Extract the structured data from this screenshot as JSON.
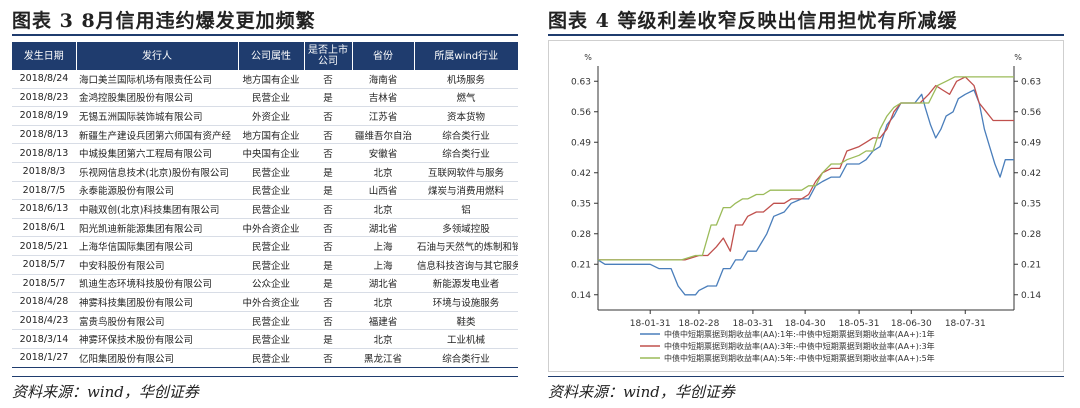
{
  "left": {
    "title": "图表 3   8月信用违约爆发更加频繁",
    "source": "资料来源：wind，华创证券",
    "columns": [
      "发生日期",
      "发行人",
      "公司属性",
      "是否上市公司",
      "省份",
      "所属wind行业"
    ],
    "rows": [
      [
        "2018/8/24",
        "海口美兰国际机场有限责任公司",
        "地方国有企业",
        "否",
        "海南省",
        "机场服务"
      ],
      [
        "2018/8/23",
        "金鸿控股集团股份有限公司",
        "民营企业",
        "是",
        "吉林省",
        "燃气"
      ],
      [
        "2018/8/19",
        "无锡五洲国际装饰城有限公司",
        "外资企业",
        "否",
        "江苏省",
        "资本货物"
      ],
      [
        "2018/8/13",
        "新疆生产建设兵团第六师国有资产经",
        "地方国有企业",
        "否",
        "疆维吾尔自治",
        "综合类行业"
      ],
      [
        "2018/8/13",
        "中城投集团第六工程局有限公司",
        "中央国有企业",
        "否",
        "安徽省",
        "综合类行业"
      ],
      [
        "2018/8/3",
        "乐视网信息技术(北京)股份有限公司",
        "民营企业",
        "是",
        "北京",
        "互联网软件与服务"
      ],
      [
        "2018/7/5",
        "永泰能源股份有限公司",
        "民营企业",
        "是",
        "山西省",
        "煤炭与消费用燃料"
      ],
      [
        "2018/6/13",
        "中融双创(北京)科技集团有限公司",
        "民营企业",
        "否",
        "北京",
        "铝"
      ],
      [
        "2018/6/1",
        "阳光凯迪新能源集团有限公司",
        "中外合资企业",
        "否",
        "湖北省",
        "多领域控股"
      ],
      [
        "2018/5/21",
        "上海华信国际集团有限公司",
        "民营企业",
        "否",
        "上海",
        "石油与天然气的炼制和销售"
      ],
      [
        "2018/5/7",
        "中安科股份有限公司",
        "民营企业",
        "是",
        "上海",
        "信息科技咨询与其它服务"
      ],
      [
        "2018/5/7",
        "凯迪生态环境科技股份有限公司",
        "公众企业",
        "是",
        "湖北省",
        "新能源发电业者"
      ],
      [
        "2018/4/28",
        "神雾科技集团股份有限公司",
        "中外合资企业",
        "否",
        "北京",
        "环境与设施服务"
      ],
      [
        "2018/4/23",
        "富贵鸟股份有限公司",
        "民营企业",
        "否",
        "福建省",
        "鞋类"
      ],
      [
        "2018/3/14",
        "神雾环保技术股份有限公司",
        "民营企业",
        "是",
        "北京",
        "工业机械"
      ],
      [
        "2018/1/27",
        "亿阳集团股份有限公司",
        "民营企业",
        "否",
        "黑龙江省",
        "综合类行业"
      ]
    ]
  },
  "right": {
    "title": "图表 4   等级利差收窄反映出信用担忧有所减缓",
    "source": "资料来源：wind，华创证券"
  },
  "chart_data": {
    "type": "line",
    "title": "",
    "unit_left": "%",
    "unit_right": "%",
    "ylim": [
      0.105,
      0.665
    ],
    "yticks": [
      0.14,
      0.21,
      0.28,
      0.35,
      0.42,
      0.49,
      0.56,
      0.63
    ],
    "xticks": [
      "18-01-31",
      "18-02-28",
      "18-03-31",
      "18-04-30",
      "18-05-31",
      "18-06-30",
      "18-07-31"
    ],
    "x_start": "2018-01-01",
    "x_end": "2018-08-28",
    "grid": false,
    "legend_position": "bottom",
    "series": [
      {
        "name": "中债中短期票据到期收益率(AA):1年:-中债中短期票据到期收益率(AA+):1年",
        "color": "#4a7ebb",
        "points": [
          [
            "2018-01-01",
            0.22
          ],
          [
            "2018-01-05",
            0.21
          ],
          [
            "2018-01-20",
            0.21
          ],
          [
            "2018-01-31",
            0.21
          ],
          [
            "2018-02-05",
            0.2
          ],
          [
            "2018-02-12",
            0.2
          ],
          [
            "2018-02-16",
            0.16
          ],
          [
            "2018-02-20",
            0.14
          ],
          [
            "2018-02-26",
            0.14
          ],
          [
            "2018-02-28",
            0.15
          ],
          [
            "2018-03-05",
            0.16
          ],
          [
            "2018-03-10",
            0.16
          ],
          [
            "2018-03-14",
            0.2
          ],
          [
            "2018-03-18",
            0.2
          ],
          [
            "2018-03-21",
            0.22
          ],
          [
            "2018-03-25",
            0.22
          ],
          [
            "2018-03-28",
            0.24
          ],
          [
            "2018-04-02",
            0.24
          ],
          [
            "2018-04-05",
            0.26
          ],
          [
            "2018-04-08",
            0.28
          ],
          [
            "2018-04-12",
            0.32
          ],
          [
            "2018-04-18",
            0.33
          ],
          [
            "2018-04-22",
            0.35
          ],
          [
            "2018-04-28",
            0.36
          ],
          [
            "2018-05-02",
            0.36
          ],
          [
            "2018-05-06",
            0.39
          ],
          [
            "2018-05-10",
            0.4
          ],
          [
            "2018-05-15",
            0.41
          ],
          [
            "2018-05-20",
            0.41
          ],
          [
            "2018-05-24",
            0.44
          ],
          [
            "2018-05-31",
            0.44
          ],
          [
            "2018-06-04",
            0.45
          ],
          [
            "2018-06-08",
            0.47
          ],
          [
            "2018-06-12",
            0.48
          ],
          [
            "2018-06-16",
            0.53
          ],
          [
            "2018-06-20",
            0.55
          ],
          [
            "2018-06-24",
            0.58
          ],
          [
            "2018-06-28",
            0.58
          ],
          [
            "2018-07-02",
            0.58
          ],
          [
            "2018-07-06",
            0.6
          ],
          [
            "2018-07-08",
            0.57
          ],
          [
            "2018-07-11",
            0.53
          ],
          [
            "2018-07-14",
            0.5
          ],
          [
            "2018-07-17",
            0.52
          ],
          [
            "2018-07-20",
            0.55
          ],
          [
            "2018-07-24",
            0.56
          ],
          [
            "2018-07-27",
            0.59
          ],
          [
            "2018-07-31",
            0.6
          ],
          [
            "2018-08-05",
            0.61
          ],
          [
            "2018-08-08",
            0.58
          ],
          [
            "2018-08-11",
            0.52
          ],
          [
            "2018-08-14",
            0.48
          ],
          [
            "2018-08-17",
            0.44
          ],
          [
            "2018-08-20",
            0.41
          ],
          [
            "2018-08-23",
            0.45
          ],
          [
            "2018-08-28",
            0.45
          ]
        ]
      },
      {
        "name": "中债中短期票据到期收益率(AA):3年:-中债中短期票据到期收益率(AA+):3年",
        "color": "#c0504d",
        "points": [
          [
            "2018-01-01",
            0.22
          ],
          [
            "2018-01-31",
            0.22
          ],
          [
            "2018-02-20",
            0.22
          ],
          [
            "2018-02-28",
            0.23
          ],
          [
            "2018-03-05",
            0.23
          ],
          [
            "2018-03-10",
            0.25
          ],
          [
            "2018-03-14",
            0.27
          ],
          [
            "2018-03-18",
            0.24
          ],
          [
            "2018-03-21",
            0.3
          ],
          [
            "2018-03-25",
            0.3
          ],
          [
            "2018-03-28",
            0.32
          ],
          [
            "2018-04-02",
            0.33
          ],
          [
            "2018-04-06",
            0.33
          ],
          [
            "2018-04-12",
            0.35
          ],
          [
            "2018-04-18",
            0.35
          ],
          [
            "2018-04-22",
            0.36
          ],
          [
            "2018-04-28",
            0.36
          ],
          [
            "2018-05-02",
            0.37
          ],
          [
            "2018-05-06",
            0.4
          ],
          [
            "2018-05-10",
            0.42
          ],
          [
            "2018-05-15",
            0.43
          ],
          [
            "2018-05-20",
            0.43
          ],
          [
            "2018-05-24",
            0.47
          ],
          [
            "2018-05-31",
            0.48
          ],
          [
            "2018-06-04",
            0.49
          ],
          [
            "2018-06-08",
            0.5
          ],
          [
            "2018-06-12",
            0.5
          ],
          [
            "2018-06-16",
            0.52
          ],
          [
            "2018-06-20",
            0.56
          ],
          [
            "2018-06-24",
            0.58
          ],
          [
            "2018-06-28",
            0.58
          ],
          [
            "2018-07-05",
            0.58
          ],
          [
            "2018-07-10",
            0.6
          ],
          [
            "2018-07-14",
            0.62
          ],
          [
            "2018-07-18",
            0.61
          ],
          [
            "2018-07-22",
            0.6
          ],
          [
            "2018-07-26",
            0.63
          ],
          [
            "2018-07-31",
            0.64
          ],
          [
            "2018-08-05",
            0.62
          ],
          [
            "2018-08-08",
            0.58
          ],
          [
            "2018-08-12",
            0.56
          ],
          [
            "2018-08-16",
            0.54
          ],
          [
            "2018-08-20",
            0.54
          ],
          [
            "2018-08-28",
            0.54
          ]
        ]
      },
      {
        "name": "中债中短期票据到期收益率(AA):5年:-中债中短期票据到期收益率(AA+):5年",
        "color": "#9bbb59",
        "points": [
          [
            "2018-01-01",
            0.22
          ],
          [
            "2018-01-31",
            0.22
          ],
          [
            "2018-02-18",
            0.22
          ],
          [
            "2018-02-26",
            0.23
          ],
          [
            "2018-03-02",
            0.23
          ],
          [
            "2018-03-07",
            0.3
          ],
          [
            "2018-03-10",
            0.3
          ],
          [
            "2018-03-14",
            0.34
          ],
          [
            "2018-03-18",
            0.34
          ],
          [
            "2018-03-21",
            0.35
          ],
          [
            "2018-03-25",
            0.36
          ],
          [
            "2018-03-28",
            0.36
          ],
          [
            "2018-04-02",
            0.37
          ],
          [
            "2018-04-06",
            0.37
          ],
          [
            "2018-04-10",
            0.38
          ],
          [
            "2018-04-20",
            0.38
          ],
          [
            "2018-04-28",
            0.38
          ],
          [
            "2018-05-02",
            0.39
          ],
          [
            "2018-05-06",
            0.39
          ],
          [
            "2018-05-10",
            0.42
          ],
          [
            "2018-05-15",
            0.44
          ],
          [
            "2018-05-20",
            0.44
          ],
          [
            "2018-05-24",
            0.45
          ],
          [
            "2018-05-31",
            0.46
          ],
          [
            "2018-06-04",
            0.47
          ],
          [
            "2018-06-08",
            0.47
          ],
          [
            "2018-06-12",
            0.52
          ],
          [
            "2018-06-16",
            0.55
          ],
          [
            "2018-06-20",
            0.57
          ],
          [
            "2018-06-24",
            0.58
          ],
          [
            "2018-06-28",
            0.58
          ],
          [
            "2018-07-05",
            0.58
          ],
          [
            "2018-07-10",
            0.58
          ],
          [
            "2018-07-15",
            0.62
          ],
          [
            "2018-07-20",
            0.63
          ],
          [
            "2018-07-25",
            0.64
          ],
          [
            "2018-07-31",
            0.64
          ],
          [
            "2018-08-10",
            0.64
          ],
          [
            "2018-08-20",
            0.64
          ],
          [
            "2018-08-28",
            0.64
          ]
        ]
      }
    ]
  }
}
